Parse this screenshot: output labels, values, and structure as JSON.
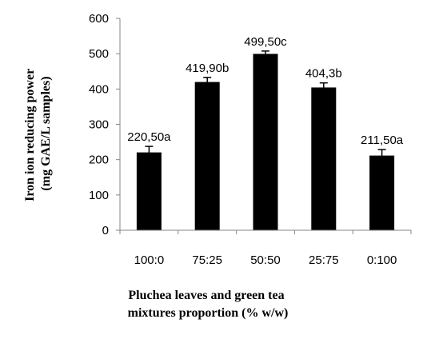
{
  "chart_data": {
    "type": "bar",
    "categories": [
      "100:0",
      "75:25",
      "50:50",
      "25:75",
      "0:100"
    ],
    "values": [
      220.5,
      419.9,
      499.5,
      404.3,
      211.5
    ],
    "error": [
      17,
      13,
      8,
      13,
      17
    ],
    "data_labels": [
      "220,50a",
      "419,90b",
      "499,50c",
      "404,3b",
      "211,50a"
    ],
    "ylabel_line1": "Iron ion reducing power",
    "ylabel_line2": "(mg GAE/L samples)",
    "xlabel_line1": "Pluchea leaves and green tea",
    "xlabel_line2": "mixtures proportion (% w/w)",
    "ylim": [
      0,
      600
    ],
    "yticks": [
      "0",
      "100",
      "200",
      "300",
      "400",
      "500",
      "600"
    ],
    "grid": false,
    "legend": "none",
    "bar_color": "#000000"
  }
}
